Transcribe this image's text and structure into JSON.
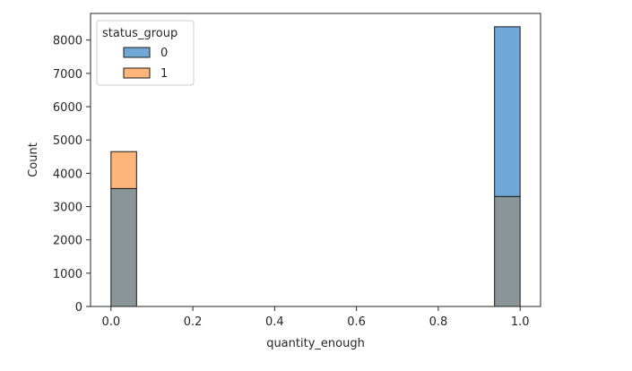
{
  "chart_data": {
    "type": "histogram",
    "xlabel": "quantity_enough",
    "ylabel": "Count",
    "xlim": [
      -0.05,
      1.05
    ],
    "ylim": [
      0,
      8800
    ],
    "xticks": [
      0.0,
      0.2,
      0.4,
      0.6,
      0.8,
      1.0
    ],
    "xtick_labels": [
      "0.0",
      "0.2",
      "0.4",
      "0.6",
      "0.8",
      "1.0"
    ],
    "yticks": [
      0,
      1000,
      2000,
      3000,
      4000,
      5000,
      6000,
      7000,
      8000
    ],
    "ytick_labels": [
      "0",
      "1000",
      "2000",
      "3000",
      "4000",
      "5000",
      "6000",
      "7000",
      "8000"
    ],
    "bin_width": 0.0625,
    "legend": {
      "title": "status_group",
      "placement": "top-left",
      "entries": [
        "0",
        "1"
      ]
    },
    "series": [
      {
        "name": "0",
        "color": "#6fa8d6",
        "bins": [
          {
            "x0": 0.0,
            "x1": 0.0625,
            "count": 3540
          },
          {
            "x0": 0.9375,
            "x1": 1.0,
            "count": 8400
          }
        ]
      },
      {
        "name": "1",
        "color": "#ffb47a",
        "bins": [
          {
            "x0": 0.0,
            "x1": 0.0625,
            "count": 4650
          },
          {
            "x0": 0.9375,
            "x1": 1.0,
            "count": 3300
          }
        ]
      }
    ],
    "overlap_color": "#8a9598",
    "grid": false
  }
}
